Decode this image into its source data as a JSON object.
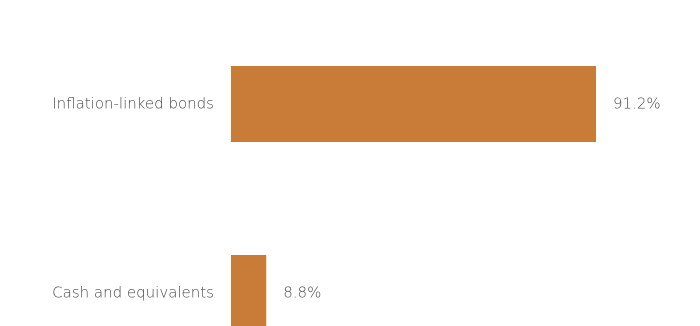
{
  "chart_data": {
    "type": "bar",
    "orientation": "horizontal",
    "title": "",
    "xlabel": "",
    "ylabel": "",
    "categories": [
      "Inflation-linked bonds",
      "Cash and equivalents"
    ],
    "values": [
      91.2,
      8.8
    ],
    "value_labels": [
      "91.2%",
      "8.8%"
    ],
    "unit": "%",
    "xlim": [
      0,
      100
    ],
    "grid": false,
    "legend": "none",
    "bar_color": "#C87C38"
  }
}
